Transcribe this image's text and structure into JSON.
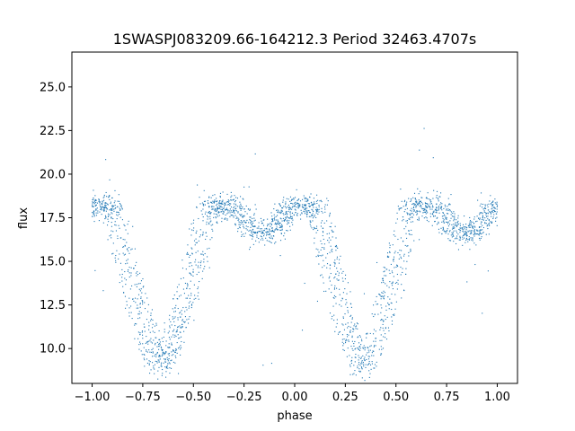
{
  "chart_data": {
    "type": "scatter",
    "title": "1SWASPJ083209.66-164212.3 Period 32463.4707s",
    "xlabel": "phase",
    "ylabel": "flux",
    "xlim": [
      -1.1,
      1.1
    ],
    "ylim": [
      8.0,
      27.0
    ],
    "x_ticks": [
      -1.0,
      -0.75,
      -0.5,
      -0.25,
      0.0,
      0.25,
      0.5,
      0.75,
      1.0
    ],
    "x_tick_labels": [
      "−1.00",
      "−0.75",
      "−0.50",
      "−0.25",
      "0.00",
      "0.25",
      "0.50",
      "0.75",
      "1.00"
    ],
    "y_ticks": [
      10.0,
      12.5,
      15.0,
      17.5,
      20.0,
      22.5,
      25.0
    ],
    "y_tick_labels": [
      "10.0",
      "12.5",
      "15.0",
      "17.5",
      "20.0",
      "22.5",
      "25.0"
    ],
    "grid": false,
    "marker_color": "#1f77b4",
    "series": [
      {
        "description_values": {
          "baseline_flux": 18.1,
          "primary_eclipse_centers_phase": [
            -0.66,
            0.34
          ],
          "primary_eclipse_min_flux": 9.0,
          "secondary_eclipse_centers_phase": [
            -0.16,
            0.84
          ],
          "secondary_eclipse_min_flux": 16.6
        },
        "points": [
          [
            -1.0,
            18.2
          ],
          [
            -0.95,
            18.3
          ],
          [
            -0.9,
            18.1
          ],
          [
            -0.85,
            18.0
          ],
          [
            -0.8,
            17.0
          ],
          [
            -0.75,
            14.0
          ],
          [
            -0.72,
            11.5
          ],
          [
            -0.7,
            10.0
          ],
          [
            -0.66,
            9.0
          ],
          [
            -0.62,
            9.6
          ],
          [
            -0.6,
            11.0
          ],
          [
            -0.57,
            13.0
          ],
          [
            -0.53,
            15.5
          ],
          [
            -0.5,
            17.2
          ],
          [
            -0.45,
            18.2
          ],
          [
            -0.4,
            18.4
          ],
          [
            -0.3,
            18.3
          ],
          [
            -0.25,
            18.0
          ],
          [
            -0.2,
            17.0
          ],
          [
            -0.16,
            16.6
          ],
          [
            -0.12,
            17.0
          ],
          [
            -0.08,
            17.8
          ],
          [
            0.0,
            18.2
          ],
          [
            0.1,
            18.3
          ],
          [
            0.2,
            17.0
          ],
          [
            0.25,
            14.0
          ],
          [
            0.28,
            11.5
          ],
          [
            0.3,
            10.0
          ],
          [
            0.34,
            9.0
          ],
          [
            0.38,
            9.6
          ],
          [
            0.4,
            11.0
          ],
          [
            0.43,
            13.0
          ],
          [
            0.47,
            15.5
          ],
          [
            0.5,
            17.2
          ],
          [
            0.55,
            18.2
          ],
          [
            0.6,
            18.4
          ],
          [
            0.7,
            18.3
          ],
          [
            0.75,
            18.0
          ],
          [
            0.8,
            17.0
          ],
          [
            0.84,
            16.6
          ],
          [
            0.88,
            17.0
          ],
          [
            0.92,
            17.8
          ],
          [
            1.0,
            18.2
          ]
        ]
      }
    ]
  }
}
